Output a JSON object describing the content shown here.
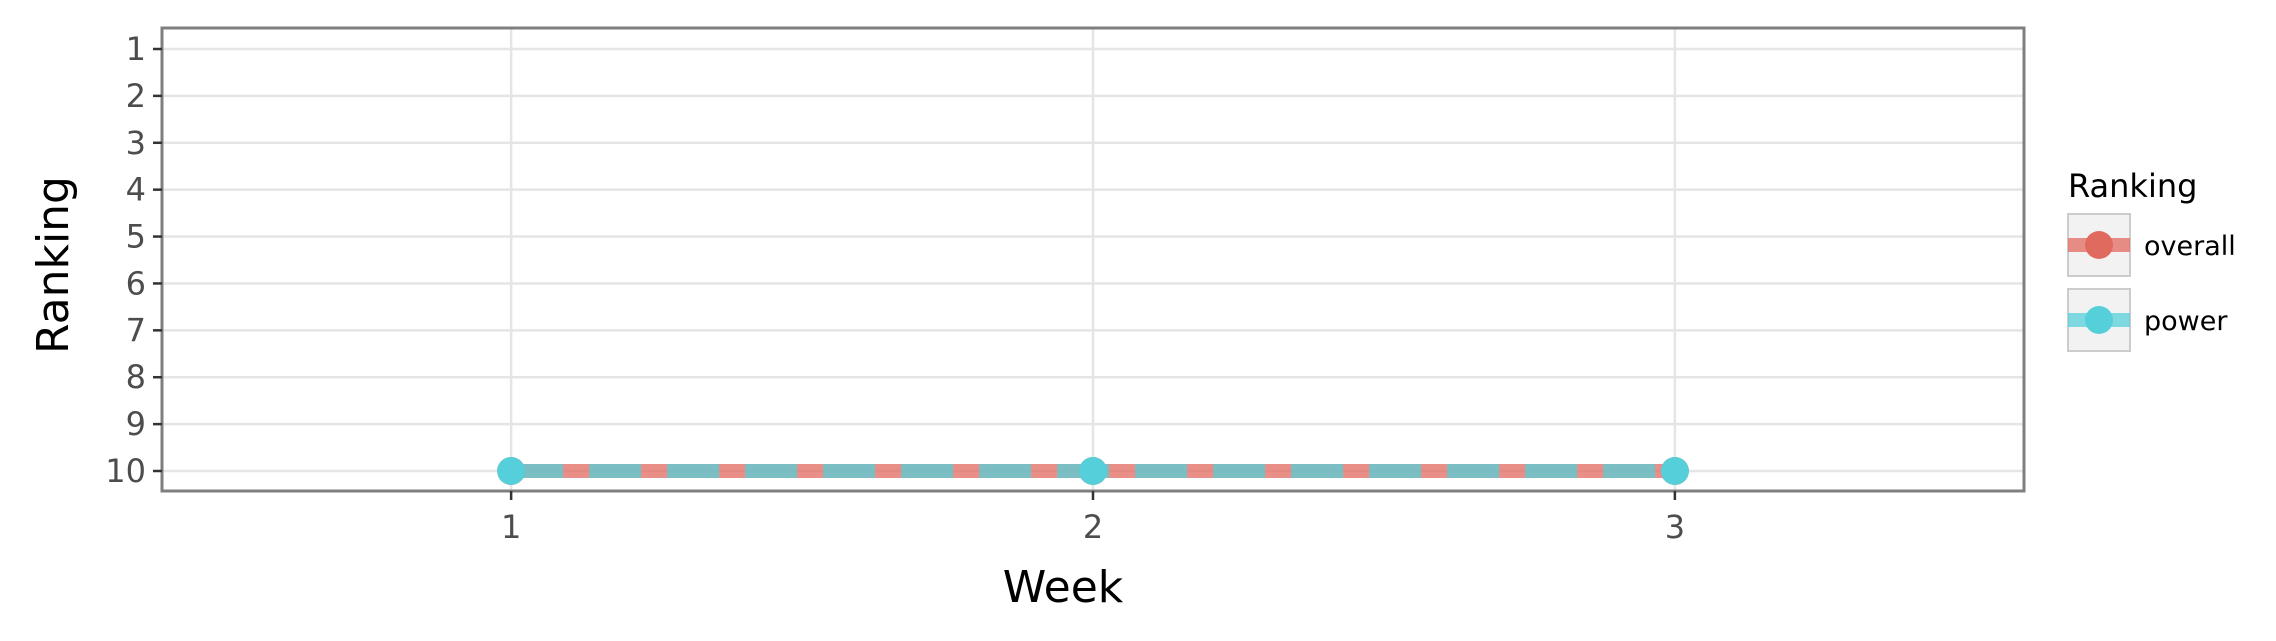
{
  "colors": {
    "overall": "#e16a5f",
    "power": "#55cfd9",
    "grid": "#e5e5e5",
    "panel_border": "#7f7f7f",
    "tick_text": "#4d4d4d"
  },
  "chart_data": {
    "type": "line",
    "title": "",
    "xlabel": "Week",
    "ylabel": "Ranking",
    "x": [
      1,
      2,
      3
    ],
    "x_ticks": [
      "1",
      "2",
      "3"
    ],
    "y_ticks": [
      "1",
      "2",
      "3",
      "4",
      "5",
      "6",
      "7",
      "8",
      "9",
      "10"
    ],
    "xlim": [
      0.4,
      3.6
    ],
    "ylim": [
      1,
      10
    ],
    "y_reversed": true,
    "grid": true,
    "legend_position": "right",
    "legend_title": "Ranking",
    "series": [
      {
        "name": "overall",
        "values": [
          10,
          10,
          10
        ],
        "line_style": "solid",
        "color": "#e16a5f"
      },
      {
        "name": "power",
        "values": [
          10,
          10,
          10
        ],
        "line_style": "dashed",
        "color": "#55cfd9"
      }
    ]
  }
}
